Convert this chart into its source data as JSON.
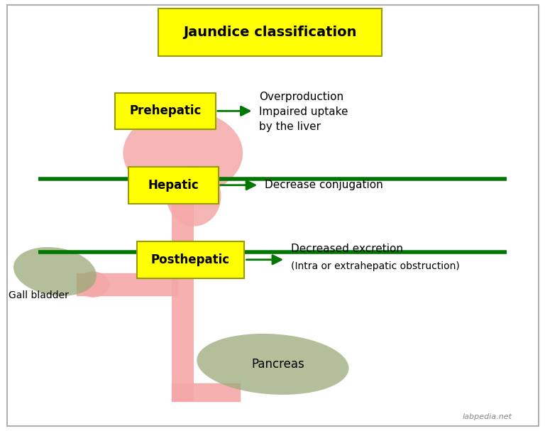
{
  "title": "Jaundice classification",
  "bg_color": "#ffffff",
  "border_color": "#b0b0b0",
  "title_bg": "#ffff00",
  "title_border": "#999900",
  "label_bg": "#ffff00",
  "label_border": "#999900",
  "green_line_color": "#007700",
  "arrow_color": "#007700",
  "liver_color": "#f5a8a8",
  "gb_color": "#9aaa78",
  "duct_color": "#f5a8a8",
  "text_color": "#000000",
  "watermark": "labpedia.net",
  "prehepatic_label": "Prehepatic",
  "hepatic_label": "Hepatic",
  "posthepatic_label": "Posthepatic",
  "prehepatic_text1": "Overproduction",
  "prehepatic_text2": "Impaired uptake",
  "prehepatic_text3": "by the liver",
  "hepatic_text": "Decrease conjugation",
  "posthepatic_text1": "Decreased excretion",
  "posthepatic_text2": "(Intra or extrahepatic obstruction)",
  "gb_text": "Gall bladder",
  "pancreas_text": "Pancreas",
  "figw": 7.68,
  "figh": 6.07,
  "dpi": 100
}
